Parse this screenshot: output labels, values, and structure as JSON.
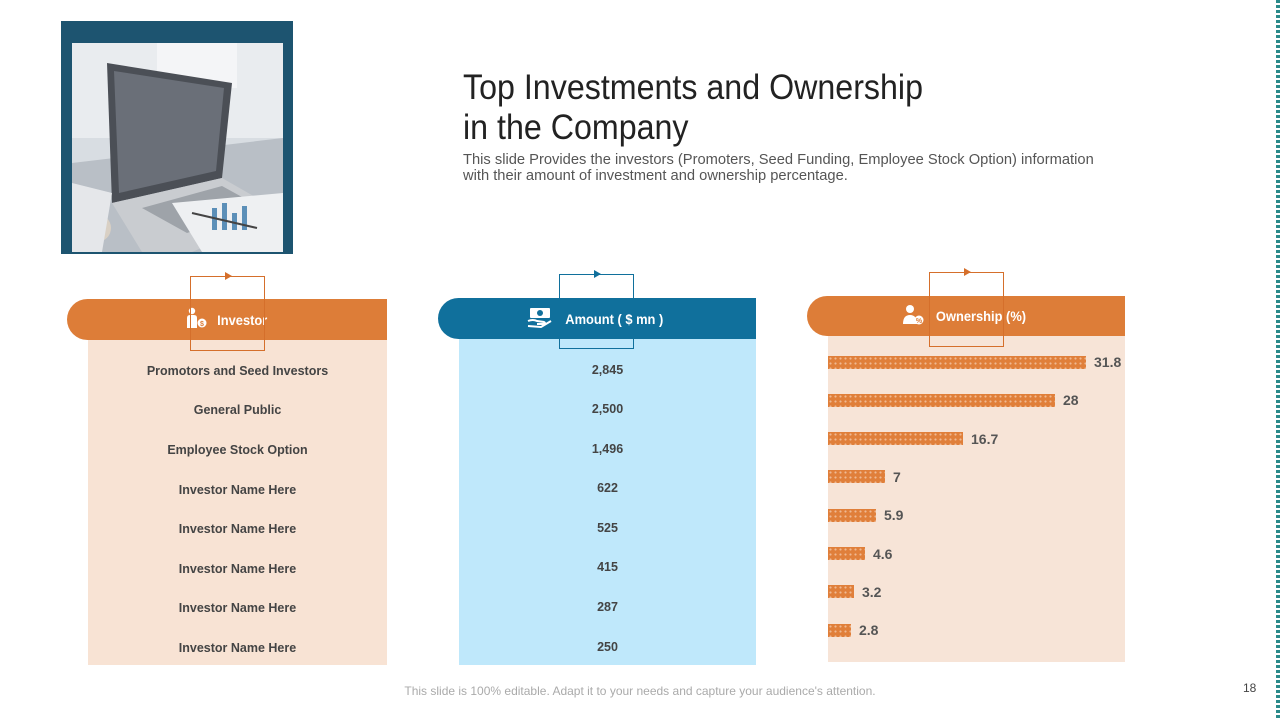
{
  "slide": {
    "title_line1": "Top Investments and Ownership",
    "title_line2": "in the Company",
    "subtitle_line1": "This slide Provides the investors (Promoters, Seed Funding, Employee Stock Option) information",
    "subtitle_line2": "with their amount of investment and ownership percentage.",
    "footer": "This slide is 100% editable. Adapt it to your needs and capture your audience's attention.",
    "page_number": "18"
  },
  "columns": {
    "investor_header": "Investor",
    "amount_header": "Amount ( $ mn )",
    "ownership_header": "Ownership (%)"
  },
  "investors": [
    "Promotors and Seed Investors",
    "General Public",
    "Employee Stock Option",
    "Investor Name Here",
    "Investor Name Here",
    "Investor Name Here",
    "Investor Name Here",
    "Investor Name Here"
  ],
  "amounts": [
    "2,845",
    "2,500",
    "1,496",
    "622",
    "525",
    "415",
    "287",
    "250"
  ],
  "ownership_labels": [
    "31.8",
    "28",
    "16.7",
    "7",
    "5.9",
    "4.6",
    "3.2",
    "2.8"
  ],
  "chart_data": {
    "type": "bar",
    "orientation": "horizontal",
    "title": "Ownership (%)",
    "categories": [
      "Promotors and Seed Investors",
      "General Public",
      "Employee Stock Option",
      "Investor Name Here",
      "Investor Name Here",
      "Investor Name Here",
      "Investor Name Here",
      "Investor Name Here"
    ],
    "values": [
      31.8,
      28,
      16.7,
      7,
      5.9,
      4.6,
      3.2,
      2.8
    ]
  },
  "colors": {
    "orange": "#dd7d38",
    "blue": "#10709c",
    "peach": "#f8e3d4",
    "light_blue": "#bfe8fb",
    "frame": "#1d5470"
  }
}
